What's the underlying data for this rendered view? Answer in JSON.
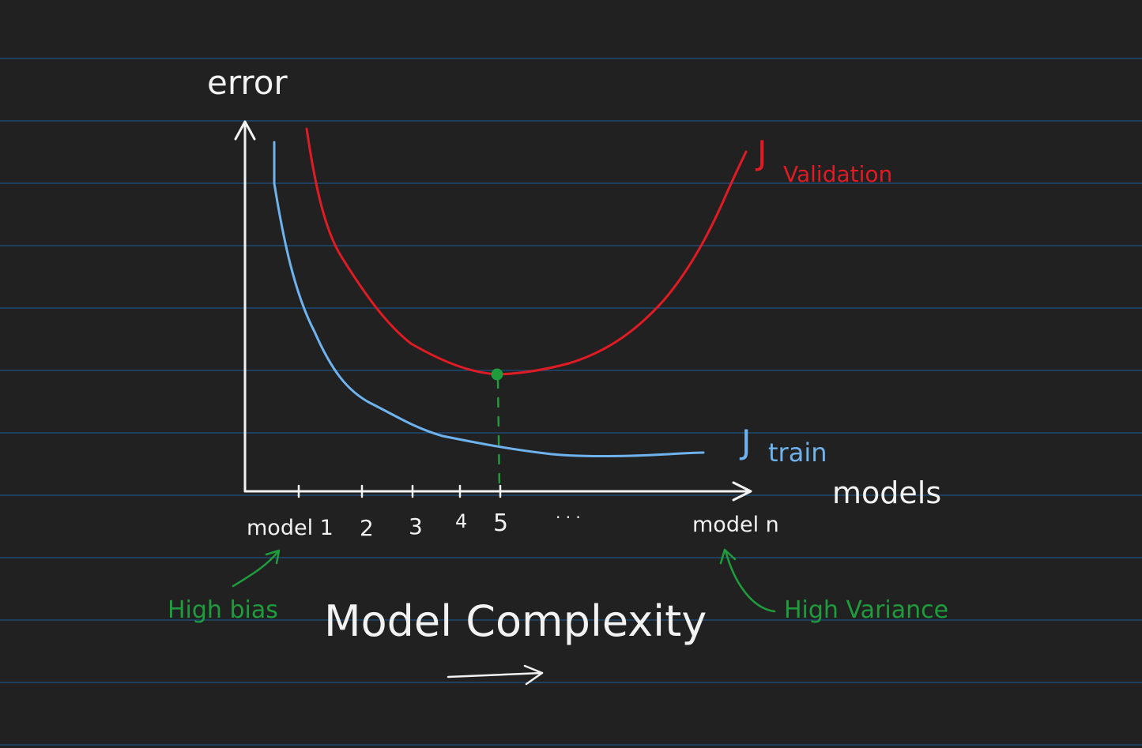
{
  "labels": {
    "y_axis": "error",
    "x_axis": "models",
    "validation_j": "J",
    "validation_sub": "Validation",
    "train_j": "J",
    "train_sub": "train",
    "high_bias": "High bias",
    "high_variance": "High Variance",
    "complexity": "Model Complexity",
    "ellipsis": "· · ·"
  },
  "ticks": [
    "model 1",
    "2",
    "3",
    "4",
    "5",
    "model n"
  ],
  "colors": {
    "background": "#212121",
    "ruled_line": "#1d4a72",
    "ink": "#f2f2f2",
    "validation": "#e01b24",
    "train": "#6fb3ee",
    "annotation": "#1f9d3d"
  }
}
